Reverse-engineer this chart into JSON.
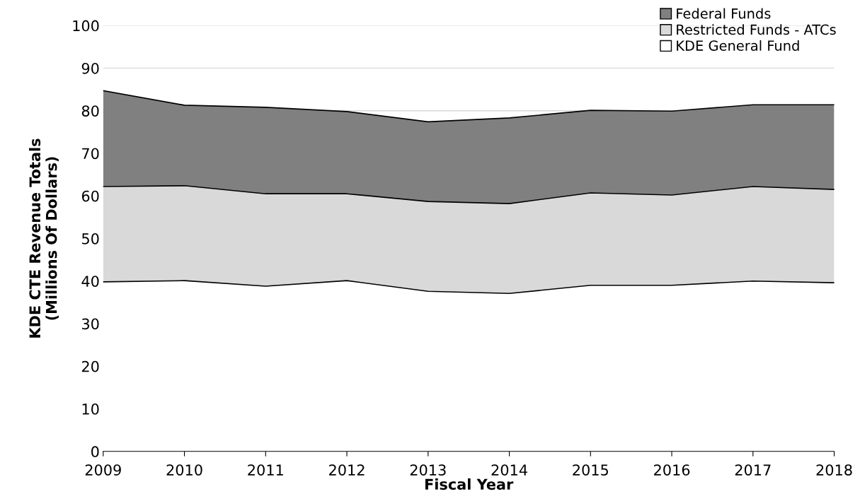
{
  "chart_data": {
    "type": "area",
    "stacked": true,
    "xlabel": "Fiscal Year",
    "ylabel": "KDE CTE Revenue Totals\n(Millions Of Dollars)",
    "x": [
      2009,
      2010,
      2011,
      2012,
      2013,
      2014,
      2015,
      2016,
      2017,
      2018
    ],
    "series": [
      {
        "name": "KDE General Fund",
        "color": "#ffffff",
        "values": [
          39.8,
          40.1,
          38.8,
          40.1,
          37.6,
          37.1,
          39.0,
          39.0,
          40.0,
          39.6
        ]
      },
      {
        "name": "Restricted Funds - ATCs",
        "color": "#d9d9d9",
        "values": [
          22.4,
          22.3,
          21.7,
          20.4,
          21.1,
          21.1,
          21.7,
          21.2,
          22.2,
          21.9
        ]
      },
      {
        "name": "Federal Funds",
        "color": "#808080",
        "values": [
          22.5,
          18.9,
          20.3,
          19.3,
          18.7,
          20.1,
          19.4,
          19.7,
          19.2,
          19.9
        ]
      }
    ],
    "xlim": [
      2009,
      2018
    ],
    "xticks": [
      2009,
      2010,
      2011,
      2012,
      2013,
      2014,
      2015,
      2016,
      2017,
      2018
    ],
    "ylim": [
      0,
      100
    ],
    "yticks": [
      0,
      10,
      20,
      30,
      40,
      50,
      60,
      70,
      80,
      90,
      100
    ],
    "grid": "y",
    "legend": "top right"
  }
}
